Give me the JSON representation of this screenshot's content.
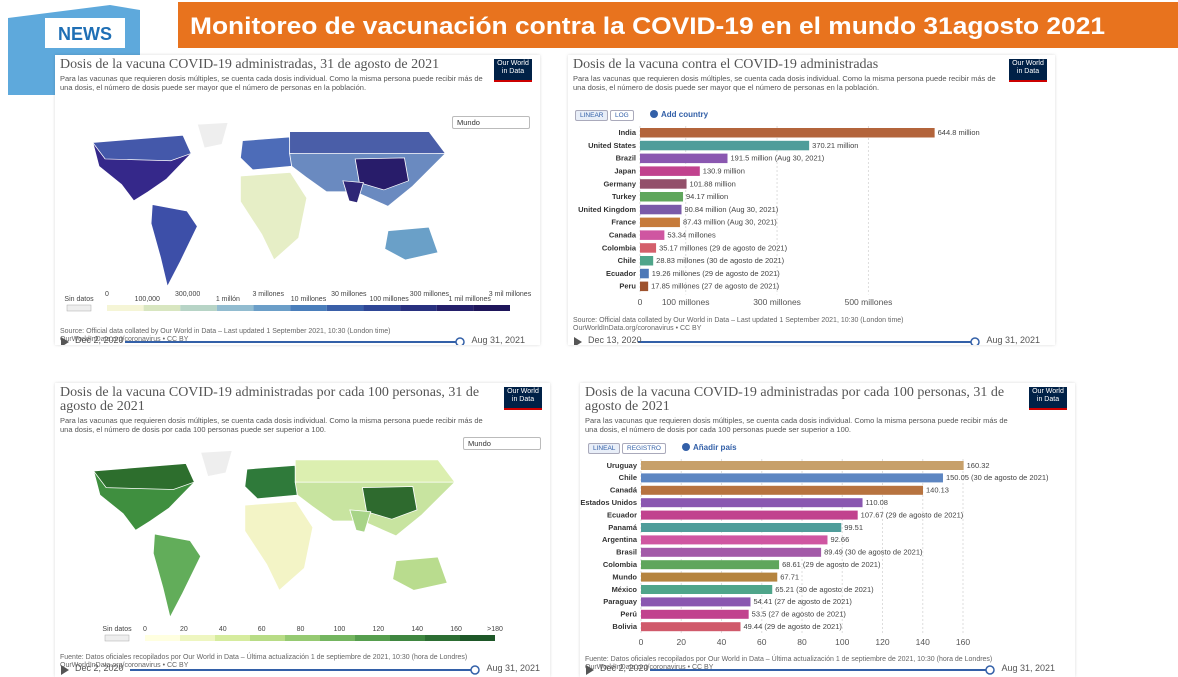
{
  "header": {
    "badge": "NEWS",
    "title": "Monitoreo de vacunación contra la COVID-19 en el mundo 31agosto 2021"
  },
  "maps": [
    {
      "title": "Dosis de la vacuna COVID-19 administradas, 31 de agosto de 2021",
      "subtitle": "Para las vacunas que requieren dosis múltiples, se cuenta cada dosis individual. Como la misma persona puede recibir más de una dosis, el número de dosis puede ser mayor que el número de personas en la población.",
      "logo": "Our World in Data",
      "region": "Mundo",
      "legend": [
        "Sin datos",
        "0",
        "100,000",
        "300,000",
        "1 millón",
        "3 millones",
        "10 millones",
        "30 millones",
        "100 millones",
        "300 millones",
        "1 mil millones",
        "3 mil millones"
      ],
      "source": [
        "Source: Official data collated by Our World in Data – Last updated 1 September 2021, 10:30 (London time)",
        "OurWorldInData.org/coronavirus • CC BY"
      ],
      "start": "Dec 2, 2020",
      "end": "Aug 31, 2021"
    },
    {
      "title": "Dosis de la vacuna COVID-19 administradas por cada 100 personas, 31 de agosto de 2021",
      "subtitle": "Para las vacunas que requieren dosis múltiples, se cuenta cada dosis individual. Como la misma persona puede recibir más de una dosis, el número de dosis por cada 100 personas puede ser superior a 100.",
      "logo": "Our World in Data",
      "region": "Mundo",
      "legend": [
        "Sin datos",
        "0",
        "20",
        "40",
        "60",
        "80",
        "100",
        "120",
        "140",
        "160",
        ">180"
      ],
      "source": [
        "Fuente: Datos oficiales recopilados por Our World in Data – Última actualización 1 de septiembre de 2021, 10:30 (hora de Londres)",
        "OurWorldInData.org/coronavirus • CC BY"
      ],
      "start": "Dec 2, 2020",
      "end": "Aug 31, 2021"
    }
  ],
  "chart_data": [
    {
      "type": "bar",
      "title": "Dosis de la vacuna contra el COVID-19 administradas",
      "subtitle": "Para las vacunas que requieren dosis múltiples, se cuenta cada dosis individual. Como la misma persona puede recibir más de una dosis, el número de dosis puede ser mayor que el número de personas en la población.",
      "logo": "Our World in Data",
      "buttons": [
        "LINEAR",
        "LOG"
      ],
      "add": "Add country",
      "categories": [
        "India",
        "United States",
        "Brazil",
        "Japan",
        "Germany",
        "Turkey",
        "United Kingdom",
        "France",
        "Canada",
        "Colombia",
        "Chile",
        "Ecuador",
        "Peru"
      ],
      "values": [
        644.8,
        370.21,
        191.5,
        130.9,
        101.88,
        94.17,
        90.84,
        87.43,
        53.34,
        35.17,
        28.83,
        19.26,
        17.85
      ],
      "value_labels": [
        "644.8 million",
        "370.21 million",
        "191.5 million (Aug 30, 2021)",
        "130.9 million",
        "101.88 million",
        "94.17 million",
        "90.84 million (Aug 30, 2021)",
        "87.43 million (Aug 30, 2021)",
        "53.34 millones",
        "35.17 millones (29 de agosto de 2021)",
        "28.83 millones (30 de agosto de 2021)",
        "19.26 millones (29 de agosto de 2021)",
        "17.85 millones (27 de agosto de 2021)"
      ],
      "colors": [
        "#b3643b",
        "#4f9d9a",
        "#8a57b0",
        "#c1428e",
        "#93506a",
        "#5fa65c",
        "#7a5aa8",
        "#c67b3b",
        "#cf56a1",
        "#d45f6b",
        "#4fa58a",
        "#4d78b7",
        "#9e522e"
      ],
      "xlim": [
        0,
        650
      ],
      "xticks": [
        0,
        {
          "value": 100,
          "label": "100 millones"
        },
        {
          "value": 300,
          "label": "300 millones"
        },
        {
          "value": 500,
          "label": "500 millones"
        }
      ],
      "grid": true,
      "source": [
        "Source: Official data collated by Our World in Data – Last updated 1 September 2021, 10:30 (London time)",
        "OurWorldInData.org/coronavirus • CC BY"
      ],
      "start": "Dec 13, 2020",
      "end": "Aug 31, 2021"
    },
    {
      "type": "bar",
      "title": "Dosis de la vacuna COVID-19 administradas por cada 100 personas, 31 de agosto de 2021",
      "subtitle": "Para las vacunas que requieren dosis múltiples, se cuenta cada dosis individual. Como la misma persona puede recibir más de una dosis, el número de dosis por cada 100 personas puede ser superior a 100.",
      "logo": "Our World in Data",
      "buttons": [
        "LINEAL",
        "REGISTRO"
      ],
      "add": "Añadir país",
      "categories": [
        "Uruguay",
        "Chile",
        "Canadá",
        "Estados Unidos",
        "Ecuador",
        "Panamá",
        "Argentina",
        "Brasil",
        "Colombia",
        "Mundo",
        "México",
        "Paraguay",
        "Perú",
        "Bolivia"
      ],
      "values": [
        160.32,
        150.05,
        140.13,
        110.08,
        107.67,
        99.51,
        92.66,
        89.49,
        68.61,
        67.71,
        65.21,
        54.41,
        53.5,
        49.44
      ],
      "value_labels": [
        "160.32",
        "150.05 (30 de agosto de 2021)",
        "140.13",
        "110.08",
        "107.67 (29 de agosto de 2021)",
        "99.51",
        "92.66",
        "89.49 (30 de agosto de 2021)",
        "68.61 (29 de agosto de 2021)",
        "67.71",
        "65.21 (30 de agosto de 2021)",
        "54.41 (27 de agosto de 2021)",
        "53.5 (27 de agosto de 2021)",
        "49.44 (29 de agosto de 2021)"
      ],
      "colors": [
        "#c7a06a",
        "#5d86c2",
        "#b7733f",
        "#8a57b0",
        "#c1428e",
        "#4f9d9a",
        "#cf56a1",
        "#a35aa8",
        "#5fa65c",
        "#b5843f",
        "#4fa58a",
        "#8a57b0",
        "#c1428e",
        "#d05a6b"
      ],
      "xlim": [
        0,
        160
      ],
      "xticks": [
        0,
        20,
        40,
        60,
        80,
        100,
        120,
        140,
        160
      ],
      "grid": true,
      "source": [
        "Fuente: Datos oficiales recopilados por Our World in Data – Última actualización 1 de septiembre de 2021, 10:30 (hora de Londres)",
        "OurWorldInData.org/coronavirus • CC BY"
      ],
      "start": "Dec 2, 2020",
      "end": "Aug 31, 2021"
    }
  ]
}
